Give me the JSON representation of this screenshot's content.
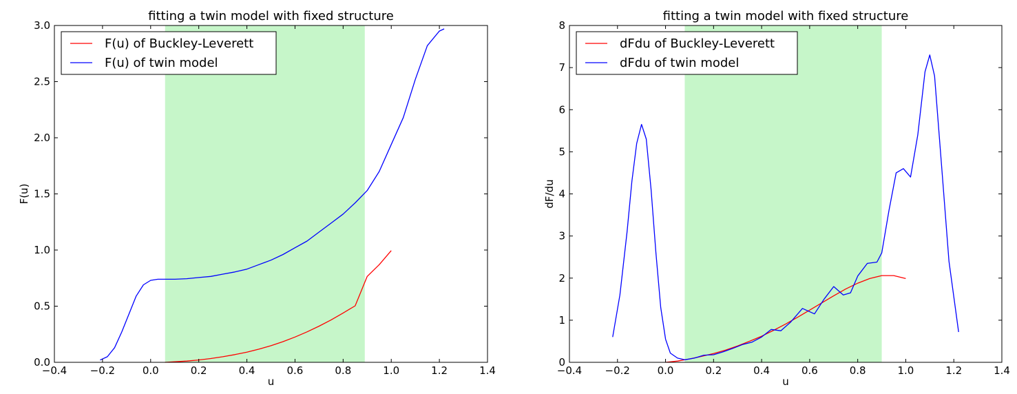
{
  "chart_data": [
    {
      "type": "line",
      "title": "fitting a twin model with fixed structure",
      "xlabel": "u",
      "ylabel": "F(u)",
      "xlim": [
        -0.4,
        1.4
      ],
      "ylim": [
        0.0,
        3.0
      ],
      "xticks": [
        "−0.4",
        "−0.2",
        "0.0",
        "0.2",
        "0.4",
        "0.6",
        "0.8",
        "1.0",
        "1.2",
        "1.4"
      ],
      "yticks": [
        "0.0",
        "0.5",
        "1.0",
        "1.5",
        "2.0",
        "2.5",
        "3.0"
      ],
      "shaded_region": {
        "x0": 0.06,
        "x1": 0.89,
        "color": "#c6f6c9"
      },
      "legend_position": "upper-left",
      "series": [
        {
          "name": "F(u) of Buckley-Leverett",
          "color": "#ff0000",
          "x": [
            0.06,
            0.1,
            0.15,
            0.2,
            0.25,
            0.3,
            0.35,
            0.4,
            0.45,
            0.5,
            0.55,
            0.6,
            0.65,
            0.7,
            0.75,
            0.8,
            0.85,
            0.9,
            0.95,
            1.0
          ],
          "y": [
            0.0,
            0.005,
            0.011,
            0.021,
            0.034,
            0.05,
            0.069,
            0.091,
            0.117,
            0.148,
            0.184,
            0.225,
            0.271,
            0.322,
            0.378,
            0.439,
            0.503,
            0.765,
            0.87,
            0.995
          ]
        },
        {
          "name": "F(u) of twin model",
          "color": "#0000ff",
          "x": [
            -0.21,
            -0.18,
            -0.15,
            -0.12,
            -0.09,
            -0.06,
            -0.03,
            0.0,
            0.03,
            0.06,
            0.1,
            0.15,
            0.2,
            0.25,
            0.3,
            0.35,
            0.4,
            0.45,
            0.5,
            0.55,
            0.6,
            0.65,
            0.7,
            0.75,
            0.8,
            0.85,
            0.9,
            0.95,
            1.0,
            1.05,
            1.1,
            1.15,
            1.2,
            1.22
          ],
          "y": [
            0.02,
            0.05,
            0.13,
            0.27,
            0.43,
            0.59,
            0.69,
            0.73,
            0.74,
            0.74,
            0.74,
            0.745,
            0.755,
            0.765,
            0.785,
            0.805,
            0.83,
            0.87,
            0.91,
            0.96,
            1.02,
            1.08,
            1.16,
            1.24,
            1.32,
            1.42,
            1.53,
            1.7,
            1.94,
            2.18,
            2.52,
            2.82,
            2.95,
            2.97
          ]
        }
      ]
    },
    {
      "type": "line",
      "title": "fitting a twin model with fixed structure",
      "xlabel": "u",
      "ylabel": "dF/du",
      "xlim": [
        -0.4,
        1.4
      ],
      "ylim": [
        0,
        8
      ],
      "xticks": [
        "−0.4",
        "−0.2",
        "0.0",
        "0.2",
        "0.4",
        "0.6",
        "0.8",
        "1.0",
        "1.2",
        "1.4"
      ],
      "yticks": [
        "0",
        "1",
        "2",
        "3",
        "4",
        "5",
        "6",
        "7",
        "8"
      ],
      "shaded_region": {
        "x0": 0.08,
        "x1": 0.9,
        "color": "#c6f6c9"
      },
      "legend_position": "upper-left",
      "series": [
        {
          "name": "dFdu of Buckley-Leverett",
          "color": "#ff0000",
          "x": [
            0.0,
            0.05,
            0.1,
            0.15,
            0.2,
            0.25,
            0.3,
            0.35,
            0.4,
            0.45,
            0.5,
            0.55,
            0.6,
            0.65,
            0.7,
            0.75,
            0.8,
            0.85,
            0.9,
            0.95,
            1.0
          ],
          "y": [
            0.0,
            0.03,
            0.08,
            0.14,
            0.21,
            0.29,
            0.39,
            0.5,
            0.62,
            0.76,
            0.91,
            1.07,
            1.24,
            1.41,
            1.58,
            1.74,
            1.88,
            1.99,
            2.06,
            2.06,
            1.99
          ]
        },
        {
          "name": "dFdu of twin model",
          "color": "#0000ff",
          "x": [
            -0.22,
            -0.19,
            -0.16,
            -0.14,
            -0.12,
            -0.1,
            -0.08,
            -0.06,
            -0.04,
            -0.02,
            0.0,
            0.02,
            0.05,
            0.08,
            0.12,
            0.16,
            0.2,
            0.24,
            0.28,
            0.32,
            0.36,
            0.4,
            0.44,
            0.48,
            0.52,
            0.57,
            0.62,
            0.66,
            0.7,
            0.74,
            0.77,
            0.8,
            0.84,
            0.88,
            0.9,
            0.93,
            0.96,
            0.99,
            1.02,
            1.05,
            1.08,
            1.1,
            1.12,
            1.15,
            1.18,
            1.22
          ],
          "y": [
            0.6,
            1.6,
            3.1,
            4.3,
            5.2,
            5.65,
            5.3,
            4.1,
            2.6,
            1.3,
            0.55,
            0.22,
            0.1,
            0.06,
            0.1,
            0.17,
            0.18,
            0.25,
            0.33,
            0.42,
            0.48,
            0.6,
            0.78,
            0.75,
            0.95,
            1.28,
            1.15,
            1.5,
            1.8,
            1.6,
            1.65,
            2.05,
            2.35,
            2.38,
            2.6,
            3.6,
            4.5,
            4.6,
            4.4,
            5.4,
            6.9,
            7.3,
            6.8,
            4.6,
            2.4,
            0.72
          ]
        }
      ]
    }
  ]
}
